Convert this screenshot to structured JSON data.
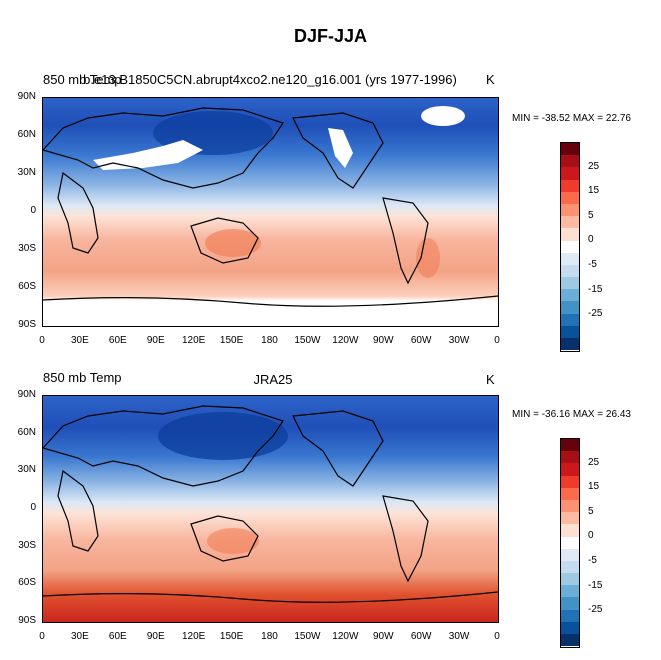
{
  "title": "DJF-JJA",
  "panels": [
    {
      "id": "model",
      "left_title": "850 mb Temp",
      "center_title": "b.e13.B1850C5CN.abrupt4xco2.ne120_g16.001 (yrs 1977-1996)",
      "units": "K",
      "min_max": "MIN = -38.52  MAX =  22.76",
      "has_missing_white": true
    },
    {
      "id": "obs",
      "left_title": "850 mb Temp",
      "center_title": "JRA25",
      "units": "K",
      "min_max": "MIN = -36.16  MAX =  26.43",
      "has_missing_white": false
    }
  ],
  "x_ticks": [
    "0",
    "30E",
    "60E",
    "90E",
    "120E",
    "150E",
    "180",
    "150W",
    "120W",
    "90W",
    "60W",
    "30W",
    "0"
  ],
  "y_ticks": [
    "90N",
    "60N",
    "30N",
    "0",
    "30S",
    "60S",
    "90S"
  ],
  "colorbar": {
    "labels": [
      "25",
      "15",
      "5",
      "0",
      "-5",
      "-15",
      "-25"
    ],
    "colors": [
      "#67000d",
      "#a50f15",
      "#cb181d",
      "#ef3b2c",
      "#fb6a4a",
      "#fc9272",
      "#fcbba1",
      "#fee0d2",
      "#ffffff",
      "#deebf7",
      "#c6dbef",
      "#9ecae1",
      "#6baed6",
      "#4292c6",
      "#2171b5",
      "#08519c",
      "#08306b"
    ]
  }
}
